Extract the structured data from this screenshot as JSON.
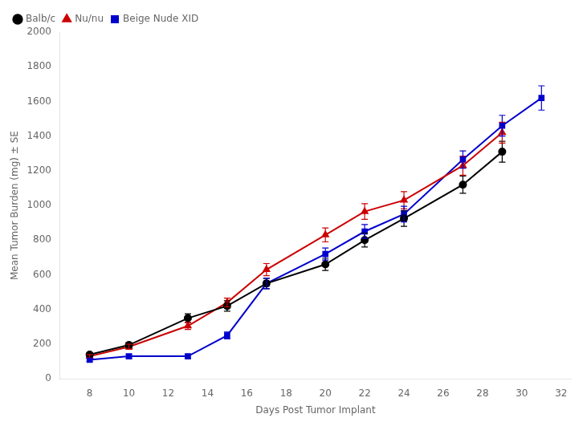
{
  "chart_data": {
    "type": "line",
    "xlabel": "Days Post Tumor Implant",
    "ylabel": "Mean Tumor Burden (mg) ± SE",
    "x": [
      8,
      10,
      13,
      15,
      17,
      20,
      22,
      24,
      27,
      29,
      31
    ],
    "series": [
      {
        "name": "Balb/c",
        "color": "#000000",
        "marker": "circle",
        "values": [
          140,
          195,
          350,
          420,
          550,
          660,
          800,
          925,
          1120,
          1310,
          null
        ],
        "se": [
          10,
          15,
          25,
          30,
          30,
          35,
          40,
          45,
          50,
          60,
          null
        ]
      },
      {
        "name": "Nu/nu",
        "color": "#cc0000",
        "marker": "triangle",
        "values": [
          130,
          185,
          305,
          440,
          630,
          830,
          965,
          1030,
          1230,
          1420,
          null
        ],
        "se": [
          10,
          15,
          20,
          25,
          35,
          40,
          45,
          50,
          55,
          60,
          null
        ]
      },
      {
        "name": "Beige Nude XID",
        "color": "#0000cc",
        "marker": "square",
        "values": [
          110,
          130,
          130,
          250,
          550,
          720,
          850,
          950,
          1265,
          1460,
          1620
        ],
        "se": [
          10,
          12,
          12,
          20,
          30,
          35,
          40,
          45,
          50,
          60,
          70
        ]
      }
    ],
    "xlim": [
      6.5,
      32.5
    ],
    "ylim": [
      0,
      2000
    ],
    "xticks": [
      8,
      10,
      12,
      14,
      16,
      18,
      20,
      22,
      24,
      26,
      28,
      30,
      32
    ],
    "yticks": [
      0,
      200,
      400,
      600,
      800,
      1000,
      1200,
      1400,
      1600,
      1800,
      2000
    ],
    "grid": false,
    "legend": "upper left"
  }
}
